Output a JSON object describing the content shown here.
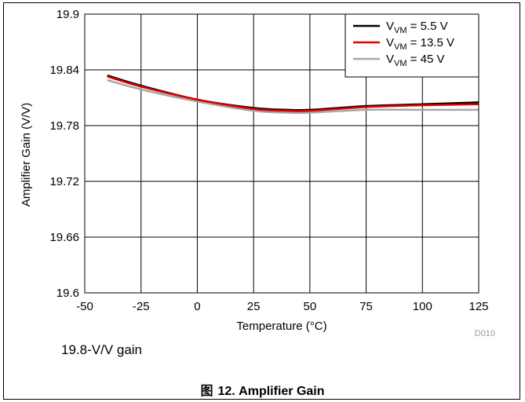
{
  "chart_data": {
    "type": "line",
    "xlabel": "Temperature (°C)",
    "ylabel": "Amplifier Gain (V/V)",
    "xlim": [
      -50,
      125
    ],
    "ylim": [
      19.6,
      19.9
    ],
    "x_ticks": [
      "-50",
      "-25",
      "0",
      "25",
      "50",
      "75",
      "100",
      "125"
    ],
    "y_ticks": [
      "19.6",
      "19.66",
      "19.72",
      "19.78",
      "19.84",
      "19.9"
    ],
    "grid": true,
    "legend_position": "top-right",
    "series": [
      {
        "name": "V_VM = 5.5 V",
        "legend_main": "V",
        "legend_sub": "VM",
        "legend_rest": " = 5.5 V",
        "color": "#000000",
        "x": [
          -40,
          -25,
          0,
          25,
          40,
          50,
          75,
          100,
          125
        ],
        "y": [
          19.834,
          19.823,
          19.808,
          19.799,
          19.797,
          19.797,
          19.801,
          19.803,
          19.805
        ]
      },
      {
        "name": "V_VM = 13.5 V",
        "legend_main": "V",
        "legend_sub": "VM",
        "legend_rest": " = 13.5 V",
        "color": "#e00000",
        "x": [
          -40,
          -25,
          0,
          25,
          40,
          50,
          75,
          100,
          125
        ],
        "y": [
          19.833,
          19.822,
          19.808,
          19.798,
          19.796,
          19.796,
          19.8,
          19.802,
          19.803
        ]
      },
      {
        "name": "V_VM = 45 V",
        "legend_main": "V",
        "legend_sub": "VM",
        "legend_rest": " = 45 V",
        "color": "#a6a6a6",
        "x": [
          -40,
          -25,
          0,
          25,
          40,
          50,
          75,
          100,
          125
        ],
        "y": [
          19.829,
          19.819,
          19.806,
          19.796,
          19.794,
          19.794,
          19.797,
          19.797,
          19.797
        ]
      }
    ]
  },
  "chart_id": "D010",
  "note": "19.8-V/V gain",
  "caption_prefix": "图",
  "caption": "12. Amplifier Gain"
}
